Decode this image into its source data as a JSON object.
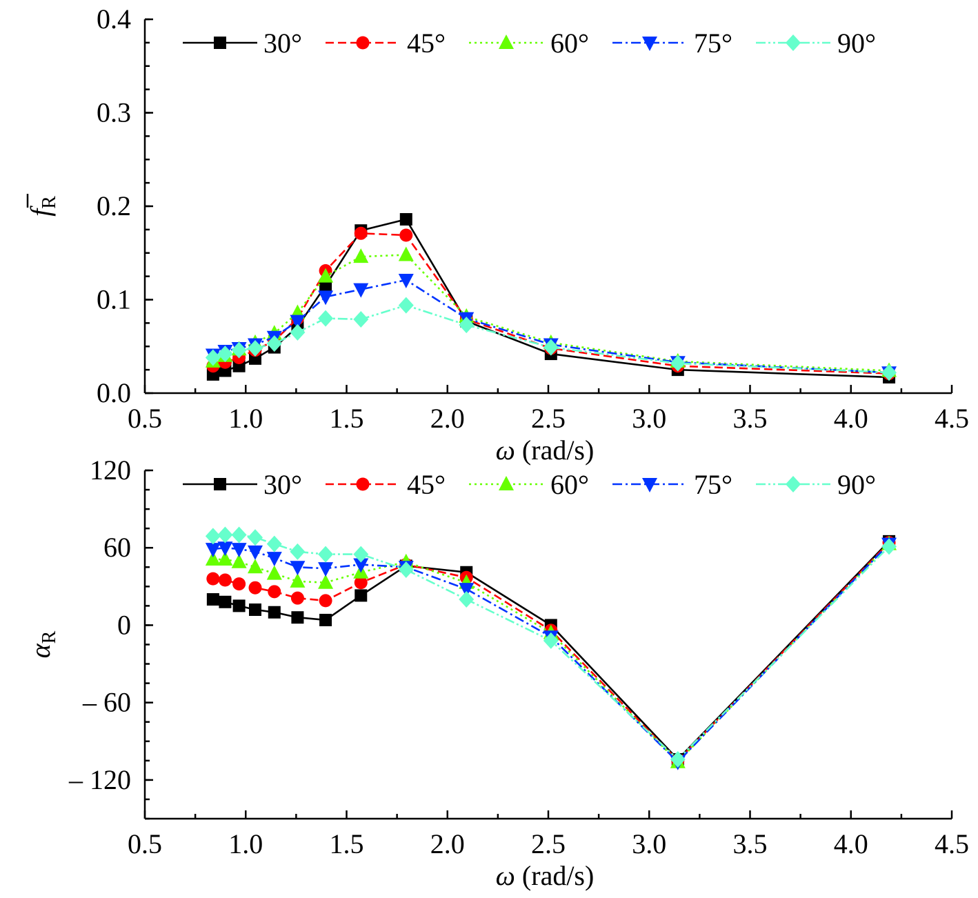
{
  "chart_data": [
    {
      "type": "line",
      "ylabel": {
        "symbol": "f",
        "subscript": "R"
      },
      "xlabel": {
        "symbol": "ω",
        "unit": "(rad/s)"
      },
      "xlim": [
        0.5,
        4.5
      ],
      "ylim": [
        0.0,
        0.4
      ],
      "xticks": [
        "0.5",
        "1.0",
        "1.5",
        "2.0",
        "2.5",
        "3.0",
        "3.5",
        "4.0",
        "4.5"
      ],
      "yticks": [
        "0.0",
        "0.1",
        "0.2",
        "0.3",
        "0.4"
      ],
      "grid": false,
      "legend_position": "top",
      "x": [
        0.838,
        0.898,
        0.967,
        1.047,
        1.142,
        1.257,
        1.396,
        1.571,
        1.795,
        2.094,
        2.513,
        3.142,
        4.189
      ],
      "series": [
        {
          "name": "30°",
          "color": "#000000",
          "marker": "square",
          "dash": "solid",
          "values": [
            0.02,
            0.024,
            0.029,
            0.037,
            0.049,
            0.071,
            0.115,
            0.174,
            0.186,
            0.077,
            0.042,
            0.025,
            0.017
          ]
        },
        {
          "name": "45°",
          "color": "#ff0000",
          "marker": "circle",
          "dash": "dash",
          "values": [
            0.029,
            0.033,
            0.038,
            0.046,
            0.056,
            0.08,
            0.131,
            0.171,
            0.169,
            0.079,
            0.048,
            0.029,
            0.021
          ]
        },
        {
          "name": "60°",
          "color": "#66ff00",
          "marker": "triangle-up",
          "dash": "dot",
          "values": [
            0.034,
            0.04,
            0.047,
            0.054,
            0.064,
            0.086,
            0.125,
            0.146,
            0.148,
            0.082,
            0.054,
            0.034,
            0.024
          ]
        },
        {
          "name": "75°",
          "color": "#0033ff",
          "marker": "triangle-down",
          "dash": "dashdot",
          "values": [
            0.041,
            0.045,
            0.048,
            0.052,
            0.06,
            0.077,
            0.103,
            0.111,
            0.121,
            0.08,
            0.052,
            0.033,
            0.022
          ]
        },
        {
          "name": "90°",
          "color": "#66ffcc",
          "marker": "diamond",
          "dash": "dashdotdot",
          "values": [
            0.038,
            0.042,
            0.046,
            0.048,
            0.053,
            0.065,
            0.08,
            0.079,
            0.094,
            0.073,
            0.049,
            0.032,
            0.022
          ]
        }
      ]
    },
    {
      "type": "line",
      "ylabel": {
        "symbol": "α",
        "subscript": "R"
      },
      "xlabel": {
        "symbol": "ω",
        "unit": "(rad/s)"
      },
      "xlim": [
        0.5,
        4.5
      ],
      "ylim": [
        -150,
        120
      ],
      "xticks": [
        "0.5",
        "1.0",
        "1.5",
        "2.0",
        "2.5",
        "3.0",
        "3.5",
        "4.0",
        "4.5"
      ],
      "yticks": [
        "120",
        "60",
        "0",
        "– 60",
        "– 120"
      ],
      "ytick_values": [
        120,
        60,
        0,
        -60,
        -120
      ],
      "grid": false,
      "legend_position": "top",
      "x": [
        0.838,
        0.898,
        0.967,
        1.047,
        1.142,
        1.257,
        1.396,
        1.571,
        1.795,
        2.094,
        2.513,
        3.142,
        4.189
      ],
      "series": [
        {
          "name": "30°",
          "color": "#000000",
          "marker": "square",
          "dash": "solid",
          "values": [
            20,
            18,
            15,
            12,
            10,
            6,
            4,
            23,
            46,
            41,
            0,
            -104,
            65
          ]
        },
        {
          "name": "45°",
          "color": "#ff0000",
          "marker": "circle",
          "dash": "dash",
          "values": [
            36,
            35,
            32,
            29,
            26,
            21,
            19,
            33,
            47,
            37,
            -4,
            -105,
            64
          ]
        },
        {
          "name": "60°",
          "color": "#66ff00",
          "marker": "triangle-up",
          "dash": "dot",
          "values": [
            51,
            51,
            49,
            45,
            40,
            34,
            33,
            41,
            49,
            33,
            -6,
            -106,
            63
          ]
        },
        {
          "name": "75°",
          "color": "#0033ff",
          "marker": "triangle-down",
          "dash": "dashdot",
          "values": [
            59,
            60,
            59,
            57,
            52,
            45,
            44,
            47,
            45,
            28,
            -9,
            -106,
            63
          ]
        },
        {
          "name": "90°",
          "color": "#66ffcc",
          "marker": "diamond",
          "dash": "dashdotdot",
          "values": [
            69,
            70,
            70,
            68,
            63,
            57,
            55,
            55,
            43,
            20,
            -12,
            -104,
            61
          ]
        }
      ]
    }
  ]
}
